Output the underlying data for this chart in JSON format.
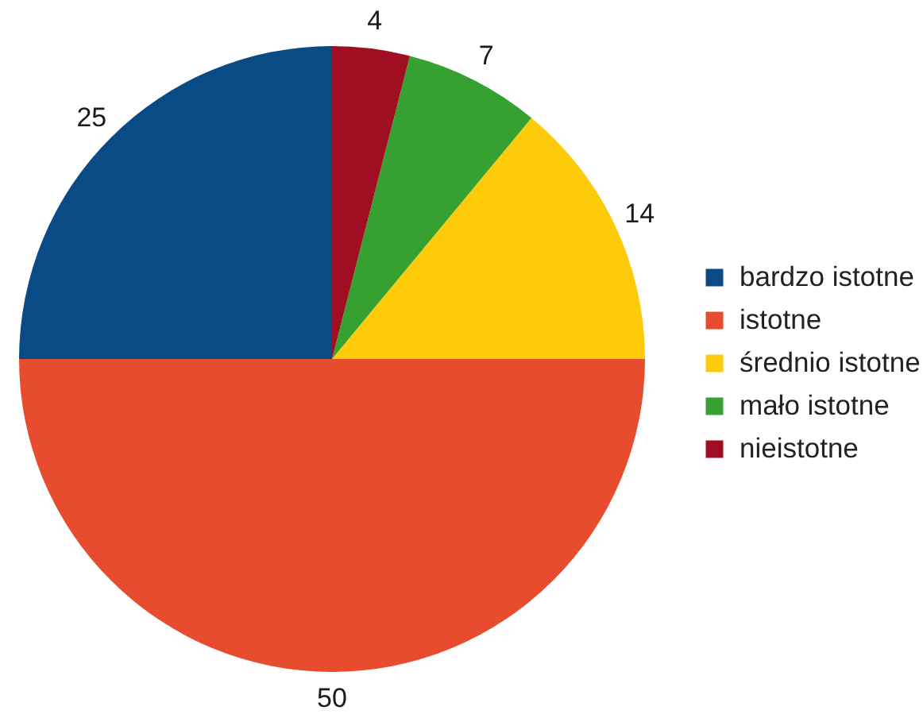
{
  "chart_data": {
    "type": "pie",
    "categories": [
      "bardzo istotne",
      "istotne",
      "średnio istotne",
      "mało istotne",
      "nieistotne"
    ],
    "values": [
      25,
      50,
      14,
      7,
      4
    ],
    "colors": [
      "#0a4a85",
      "#e84c2e",
      "#fdcb0a",
      "#36a131",
      "#a00e22"
    ],
    "data_labels": true,
    "legend": "right"
  }
}
